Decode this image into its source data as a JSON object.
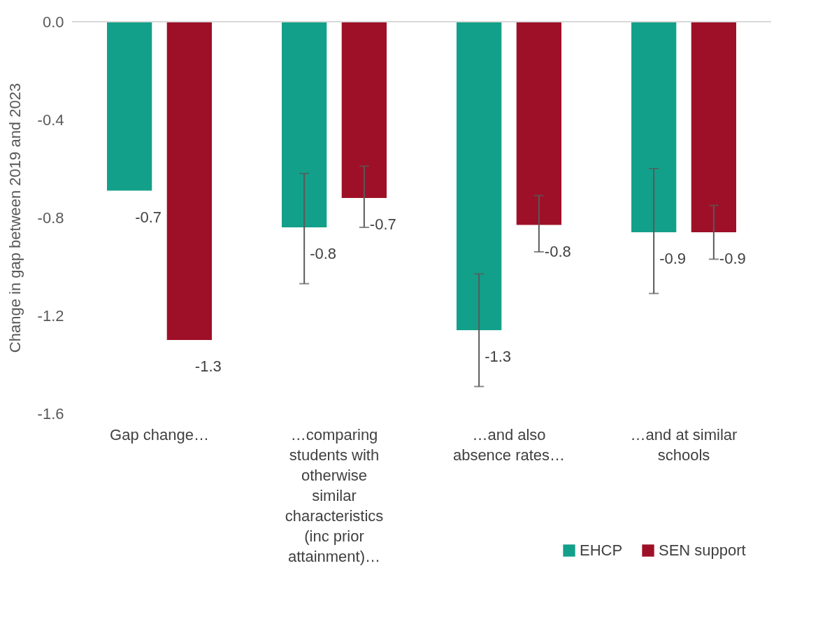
{
  "chart_data": {
    "type": "bar",
    "ylabel": "Change in gap  between 2019 and 2023",
    "categories": [
      "Gap change…",
      "…comparing students with otherwise similar characteristics (inc prior attainment)…",
      "…and also absence rates…",
      "…and at similar schools"
    ],
    "series": [
      {
        "name": "EHCP",
        "color": "#13a08a",
        "values": [
          -0.69,
          -0.84,
          -1.26,
          -0.86
        ],
        "value_labels": [
          "-0.7",
          "-0.8",
          "-1.3",
          "-0.9"
        ],
        "errors": [
          null,
          [
            -1.07,
            -0.62
          ],
          [
            -1.49,
            -1.03
          ],
          [
            -1.11,
            -0.6
          ]
        ]
      },
      {
        "name": "SEN support",
        "color": "#9e1027",
        "values": [
          -1.3,
          -0.72,
          -0.83,
          -0.86
        ],
        "value_labels": [
          "-1.3",
          "-0.7",
          "-0.8",
          "-0.9"
        ],
        "errors": [
          null,
          [
            -0.84,
            -0.59
          ],
          [
            -0.94,
            -0.71
          ],
          [
            -0.97,
            -0.75
          ]
        ]
      }
    ],
    "ylim": [
      -1.6,
      0
    ],
    "yticks": [
      {
        "value": 0,
        "label": "0.0"
      },
      -0.4,
      -0.8,
      -1.2,
      -1.6
    ],
    "ref_lines": [
      {
        "axis": "y",
        "value": 0,
        "color": "#d9d9d9"
      }
    ],
    "grid": false,
    "legend": "bottom right"
  }
}
